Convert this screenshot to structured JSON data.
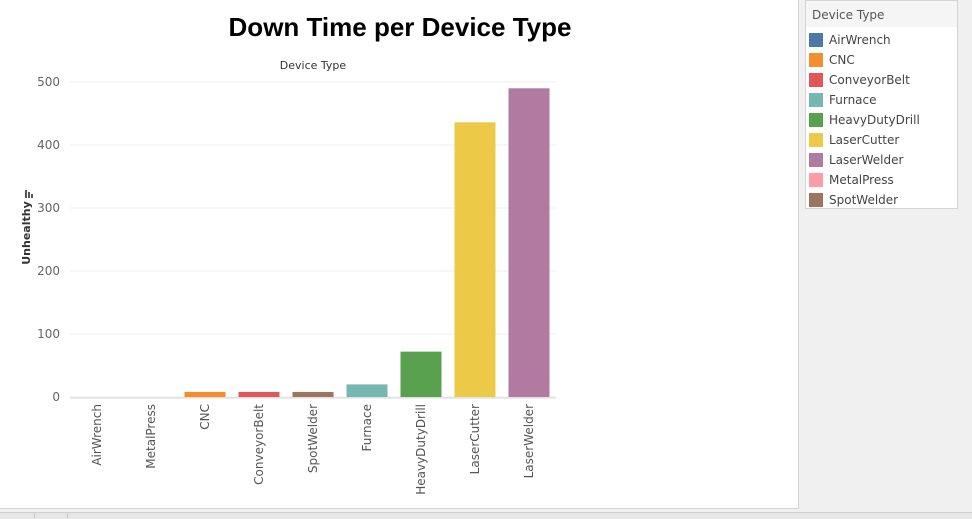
{
  "chart_data": {
    "type": "bar",
    "title": "Down Time per Device Type",
    "xlabel": "Device Type",
    "ylabel": "Unhealthy",
    "ylim": [
      0,
      500
    ],
    "yticks": [
      0,
      100,
      200,
      300,
      400,
      500
    ],
    "grid": true,
    "legend_placement": "right",
    "categories": [
      "AirWrench",
      "MetalPress",
      "CNC",
      "ConveyorBelt",
      "SpotWelder",
      "Furnace",
      "HeavyDutyDrill",
      "LaserCutter",
      "LaserWelder"
    ],
    "values": [
      0,
      0,
      8,
      8,
      8,
      20,
      72,
      436,
      490
    ],
    "colors": [
      "#4e79a7",
      "#ff9da7",
      "#f28e2b",
      "#e15759",
      "#9c755f",
      "#76b7b2",
      "#59a14f",
      "#edc948",
      "#b07aa1"
    ]
  },
  "legend": {
    "title": "Device Type",
    "items": [
      {
        "label": "AirWrench",
        "color": "#4e79a7"
      },
      {
        "label": "CNC",
        "color": "#f28e2b"
      },
      {
        "label": "ConveyorBelt",
        "color": "#e15759"
      },
      {
        "label": "Furnace",
        "color": "#76b7b2"
      },
      {
        "label": "HeavyDutyDrill",
        "color": "#59a14f"
      },
      {
        "label": "LaserCutter",
        "color": "#edc948"
      },
      {
        "label": "LaserWelder",
        "color": "#b07aa1"
      },
      {
        "label": "MetalPress",
        "color": "#ff9da7"
      },
      {
        "label": "SpotWelder",
        "color": "#9c755f"
      }
    ]
  }
}
